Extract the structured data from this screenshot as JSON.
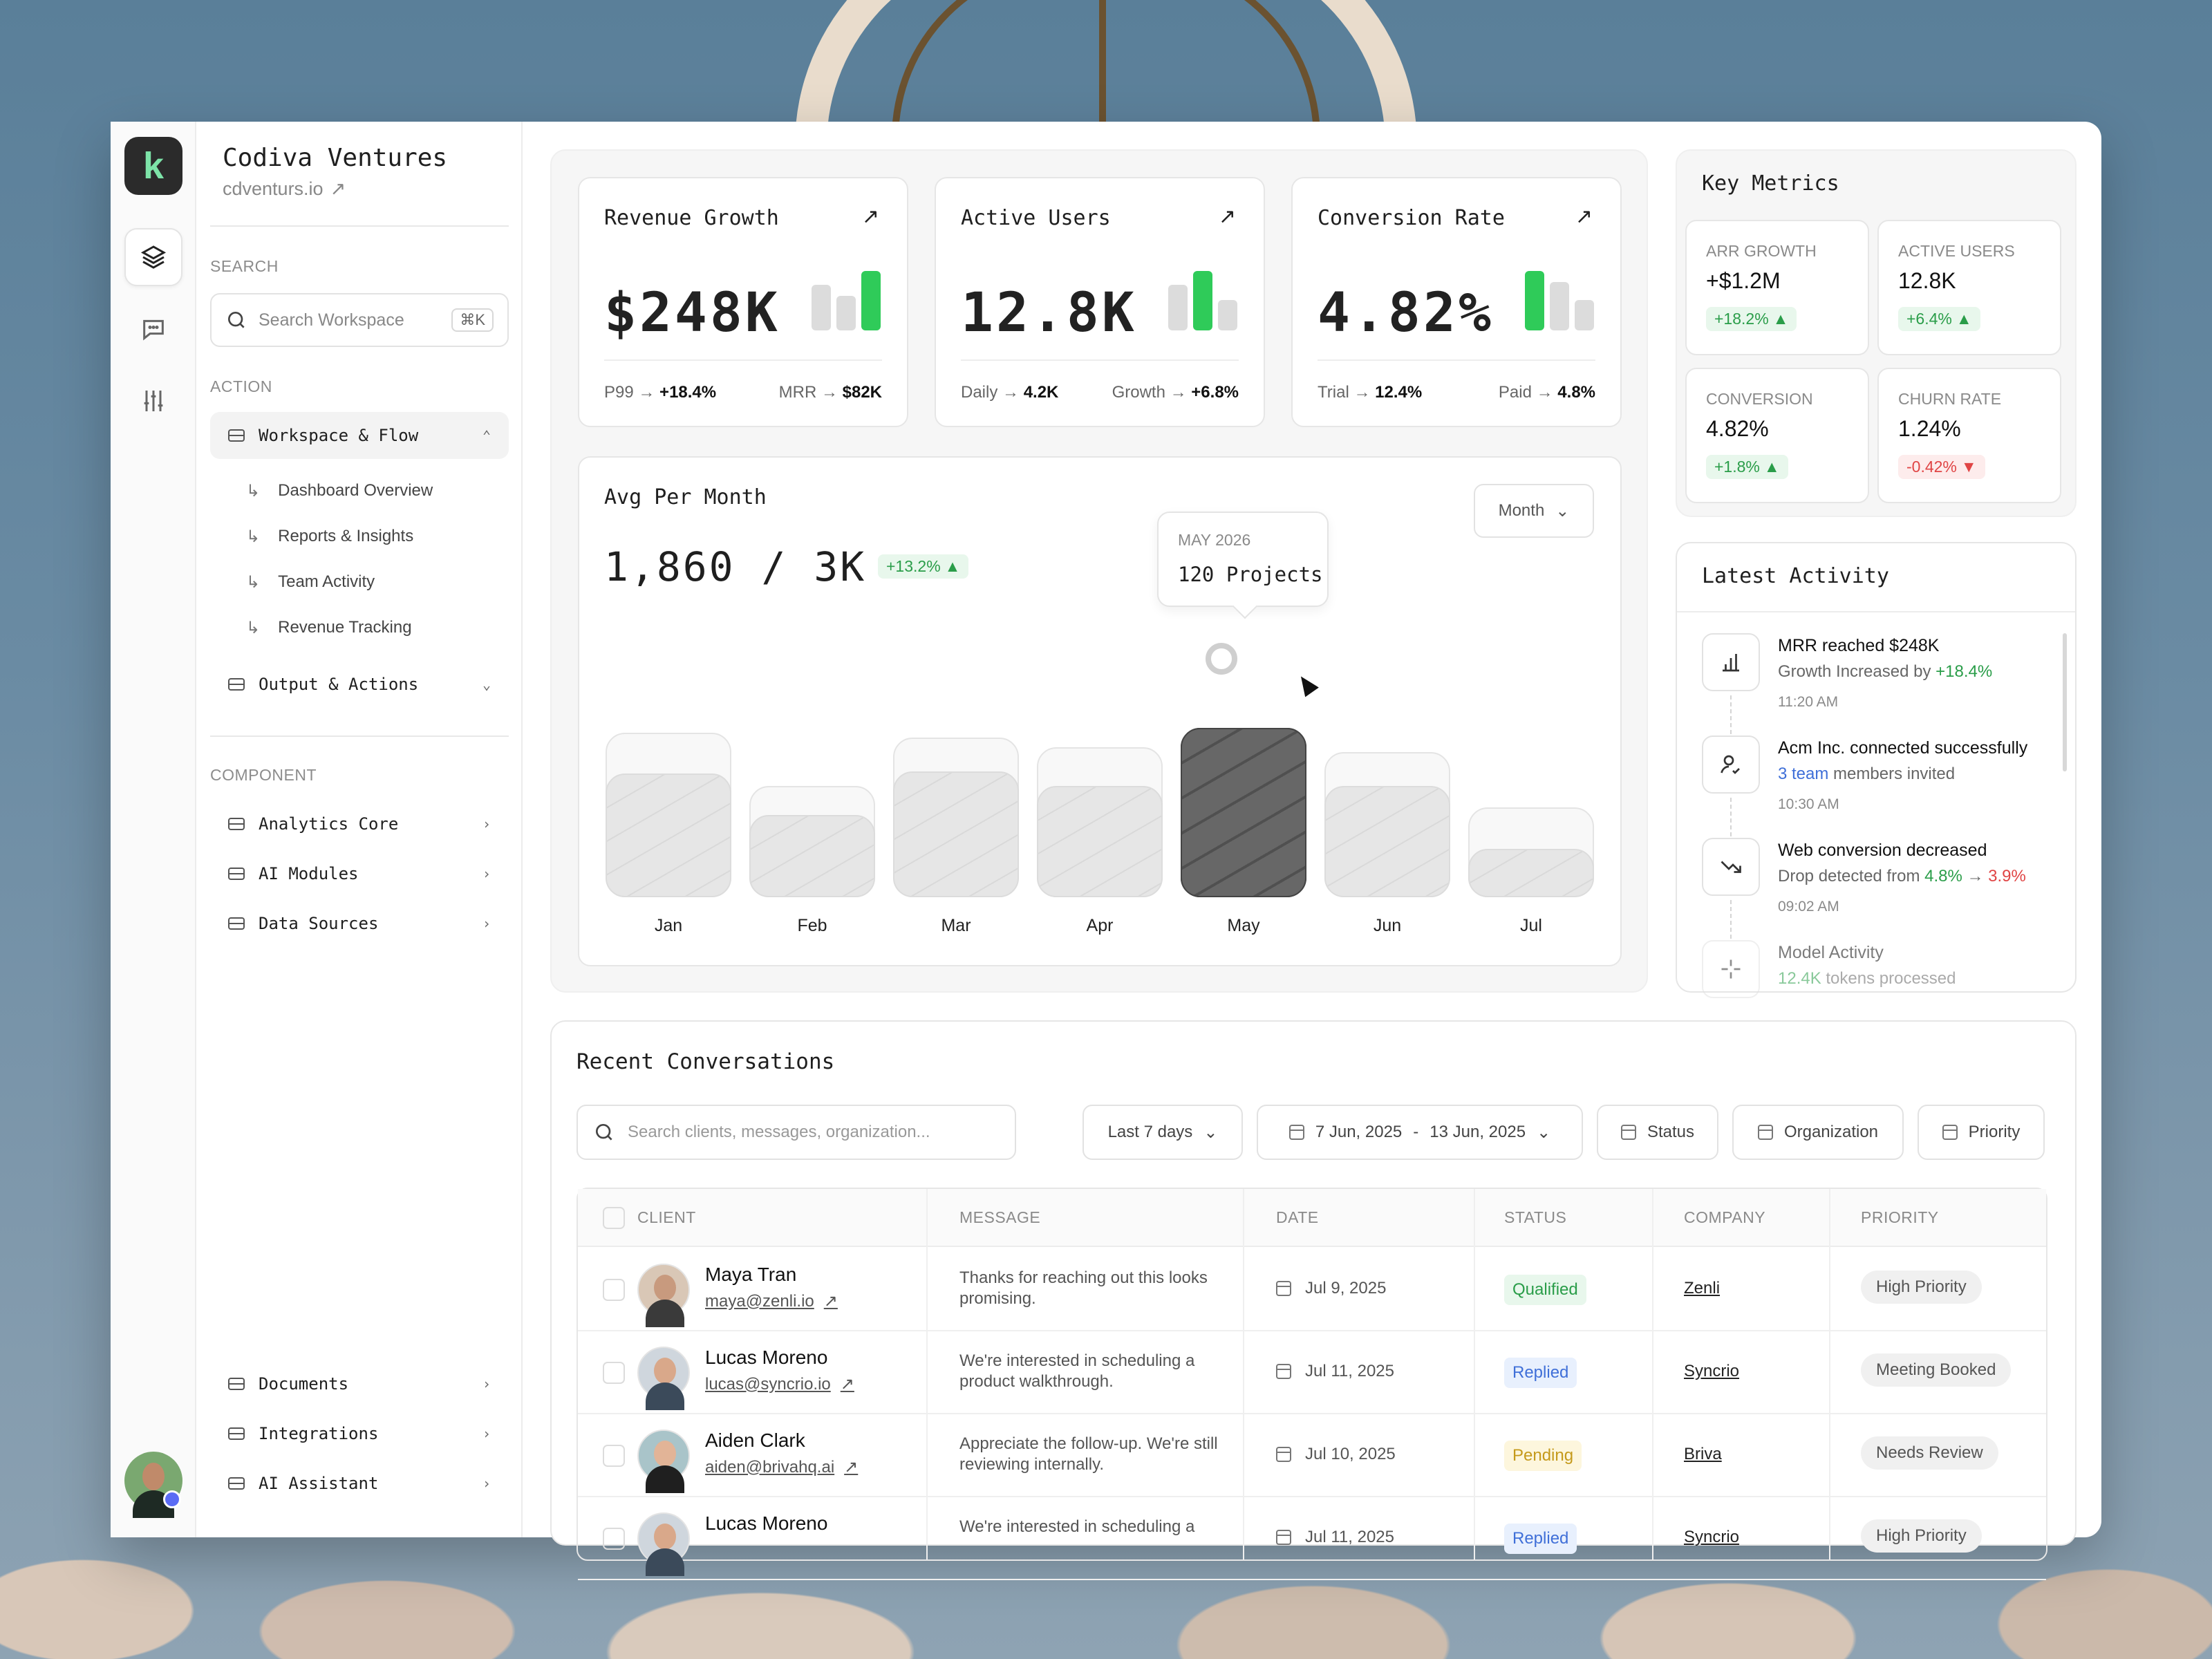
{
  "company": {
    "name": "Codiva Ventures",
    "url": "cdventurs.io"
  },
  "sidebar": {
    "search_label": "SEARCH",
    "search_placeholder": "Search Workspace",
    "search_shortcut": "⌘K",
    "action_label": "ACTION",
    "action_items": [
      {
        "label": "Workspace & Flow",
        "open": true
      },
      {
        "label": "Output & Actions",
        "open": false
      }
    ],
    "sub_items": [
      "Dashboard Overview",
      "Reports & Insights",
      "Team Activity",
      "Revenue Tracking"
    ],
    "component_label": "COMPONENT",
    "component_items": [
      "Analytics Core",
      "AI Modules",
      "Data Sources"
    ],
    "bottom_items": [
      "Documents",
      "Integrations",
      "AI Assistant"
    ]
  },
  "kpis": [
    {
      "title": "Revenue Growth",
      "value": "$248K",
      "foot_left_label": "P99",
      "foot_left_value": "+18.4%",
      "foot_right_label": "MRR",
      "foot_right_value": "$82K"
    },
    {
      "title": "Active Users",
      "value": "12.8K",
      "foot_left_label": "Daily",
      "foot_left_value": "4.2K",
      "foot_right_label": "Growth",
      "foot_right_value": "+6.8%"
    },
    {
      "title": "Conversion Rate",
      "value": "4.82%",
      "foot_left_label": "Trial",
      "foot_left_value": "12.4%",
      "foot_right_label": "Paid",
      "foot_right_value": "4.8%"
    }
  ],
  "avg_chart": {
    "title": "Avg Per Month",
    "value": "1,860 / 3K",
    "delta": "+13.2%",
    "period_button": "Month",
    "tooltip_label": "MAY 2026",
    "tooltip_value": "120 Projects"
  },
  "chart_data": {
    "type": "bar",
    "categories": [
      "Jan",
      "Feb",
      "Mar",
      "Apr",
      "May",
      "Jun",
      "Jul"
    ],
    "series": [
      {
        "values": [
          0.51,
          0.34,
          0.52,
          0.46,
          0.7,
          0.46,
          0.2
        ]
      },
      {
        "values": [
          0.68,
          0.46,
          0.66,
          0.62,
          0.7,
          0.6,
          0.37
        ]
      }
    ],
    "highlight": "May",
    "highlight_color": "#2b2b2b"
  },
  "key_metrics": {
    "title": "Key Metrics",
    "items": [
      {
        "label": "ARR GROWTH",
        "value": "+$1.2M",
        "delta": "+18.2%",
        "dir": "up"
      },
      {
        "label": "ACTIVE USERS",
        "value": "12.8K",
        "delta": "+6.4%",
        "dir": "up"
      },
      {
        "label": "CONVERSION",
        "value": "4.82%",
        "delta": "+1.8%",
        "dir": "up"
      },
      {
        "label": "CHURN RATE",
        "value": "1.24%",
        "delta": "-0.42%",
        "dir": "down"
      }
    ]
  },
  "activity": {
    "title": "Latest Activity",
    "items": [
      {
        "title": "MRR reached $248K",
        "desc_prefix": "Growth Increased by ",
        "desc_hl": "+18.4%",
        "desc_suffix": "",
        "time": "11:20 AM",
        "icon": "bar-chart-icon"
      },
      {
        "title": "Acm Inc. connected successfully",
        "desc_prefix": "",
        "desc_hl": "3 team",
        "desc_suffix": " members invited",
        "time": "10:30 AM",
        "icon": "user-check-icon"
      },
      {
        "title": "Web conversion decreased",
        "desc_prefix": "Drop detected from ",
        "desc_hl": "4.8%",
        "desc_mid": " → ",
        "desc_hl2": "3.9%",
        "time": "09:02 AM",
        "icon": "trend-down-icon"
      },
      {
        "title": "Model Activity",
        "desc_prefix": "",
        "desc_hl": "12.4K",
        "desc_suffix": " tokens processed",
        "time": "",
        "icon": "sparkle-icon"
      }
    ]
  },
  "conversations": {
    "title": "Recent Conversations",
    "search_placeholder": "Search clients, messages, organization...",
    "range": "Last 7 days",
    "date_from": "7 Jun, 2025",
    "date_sep": "-",
    "date_to": "13 Jun, 2025",
    "filters": [
      "Status",
      "Organization",
      "Priority"
    ],
    "columns": [
      "CLIENT",
      "MESSAGE",
      "DATE",
      "STATUS",
      "COMPANY",
      "PRIORITY"
    ],
    "rows": [
      {
        "name": "Maya Tran",
        "email": "maya@zenli.io",
        "message": "Thanks for reaching out this looks promising.",
        "date": "Jul 9, 2025",
        "status": "Qualified",
        "company": "Zenli",
        "priority": "High Priority"
      },
      {
        "name": "Lucas Moreno",
        "email": "lucas@syncrio.io",
        "message": "We're interested in scheduling a product walkthrough.",
        "date": "Jul 11, 2025",
        "status": "Replied",
        "company": "Syncrio",
        "priority": "Meeting Booked"
      },
      {
        "name": "Aiden Clark",
        "email": "aiden@brivahq.ai",
        "message": "Appreciate the follow-up. We're still reviewing internally.",
        "date": "Jul 10, 2025",
        "status": "Pending",
        "company": "Briva",
        "priority": "Needs Review"
      },
      {
        "name": "Lucas Moreno",
        "email": "",
        "message": "We're interested in scheduling a",
        "date": "Jul 11, 2025",
        "status": "Replied",
        "company": "Syncrio",
        "priority": "High Priority"
      }
    ]
  },
  "colors": {
    "accent_green": "#2fcb59",
    "positive": "#2a9d49",
    "negative": "#e04545",
    "link_blue": "#3f6fd8"
  }
}
